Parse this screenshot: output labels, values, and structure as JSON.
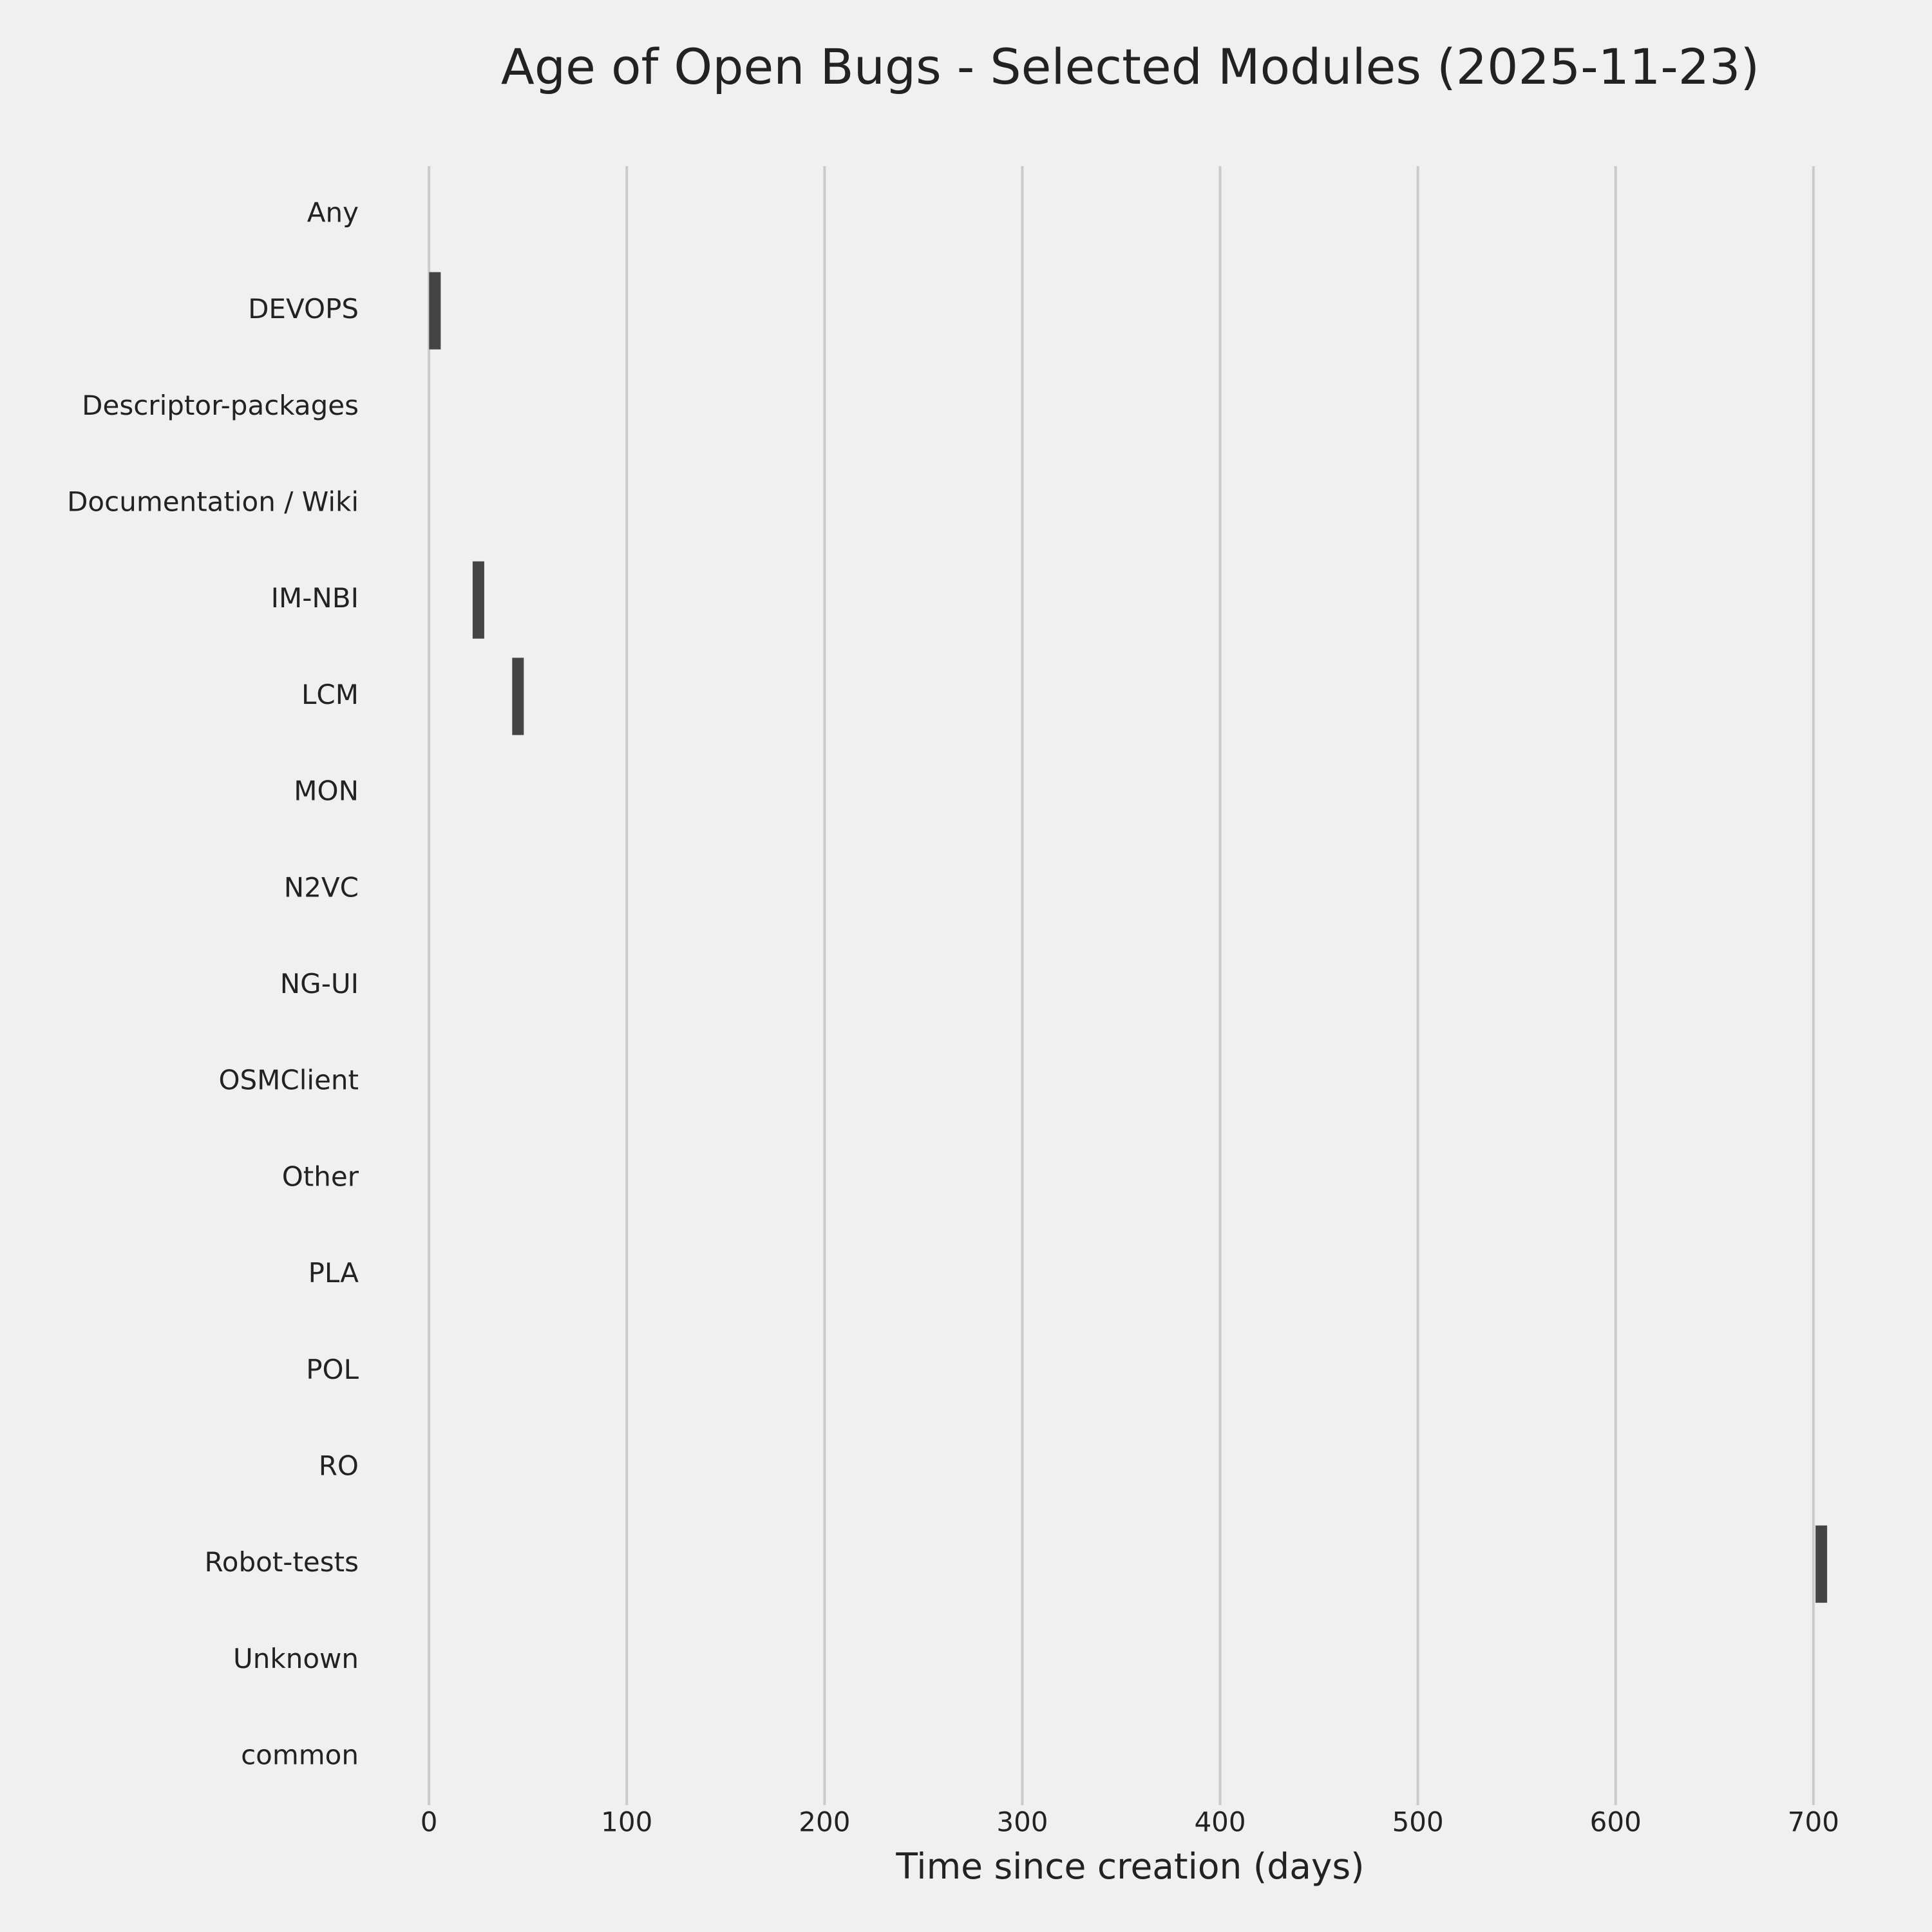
{
  "chart_data": {
    "type": "box",
    "title": "Age of Open Bugs - Selected Modules (2025-11-23)",
    "x_label": "Time since creation (days)",
    "categories": [
      "Any",
      "DEVOPS",
      "Descriptor-packages",
      "Documentation / Wiki",
      "IM-NBI",
      "LCM",
      "MON",
      "N2VC",
      "NG-UI",
      "OSMClient",
      "Other",
      "PLA",
      "POL",
      "RO",
      "Robot-tests",
      "Unknown",
      "common"
    ],
    "values": [
      null,
      3,
      null,
      null,
      25,
      45,
      null,
      null,
      null,
      null,
      null,
      null,
      null,
      null,
      704,
      null,
      null
    ],
    "color": "#444444",
    "xlim": [
      -30,
      730
    ],
    "xticks": [
      0,
      100,
      200,
      300,
      400,
      500,
      600,
      700
    ],
    "grid": true
  }
}
